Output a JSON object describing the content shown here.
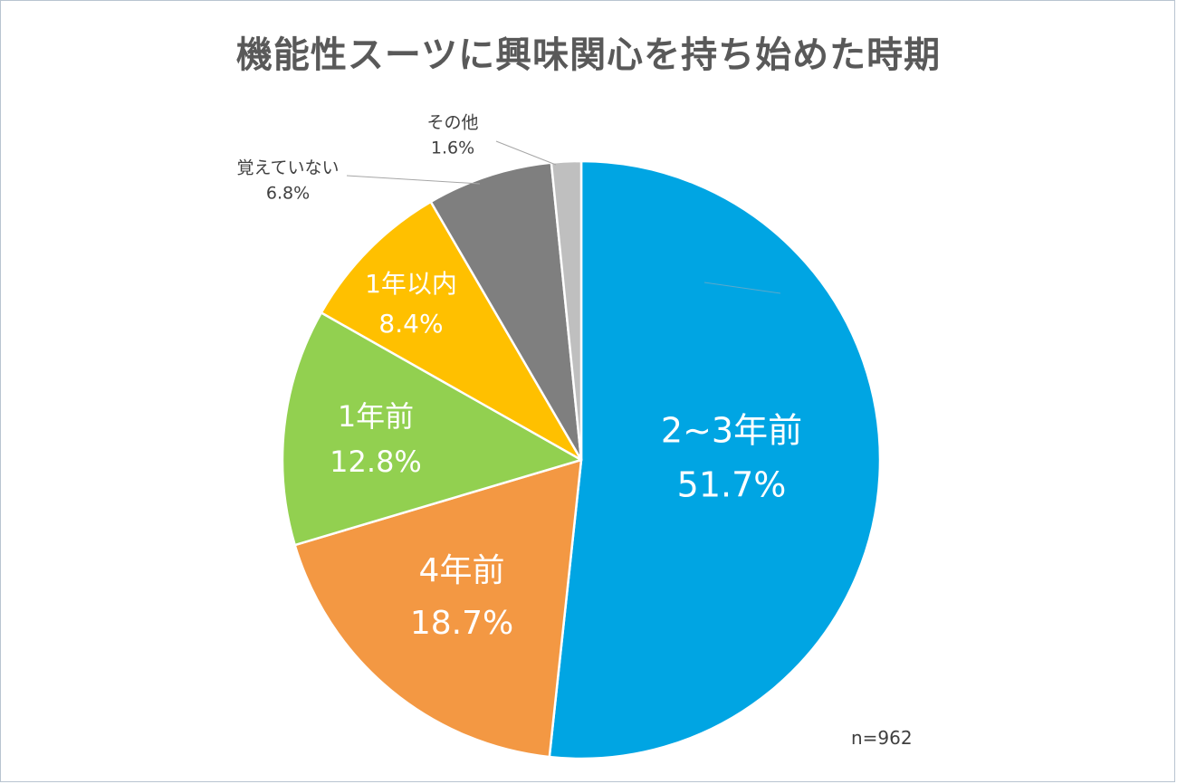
{
  "chart_data": {
    "type": "pie",
    "title": "機能性スーツに興味関心を持ち始めた時期",
    "note": "n=962",
    "slices": [
      {
        "label": "2~3年前",
        "value": 51.7,
        "value_label": "51.7%",
        "color": "#00a5e3"
      },
      {
        "label": "4年前",
        "value": 18.7,
        "value_label": "18.7%",
        "color": "#f39843"
      },
      {
        "label": "1年前",
        "value": 12.8,
        "value_label": "12.8%",
        "color": "#92d050"
      },
      {
        "label": "1年以内",
        "value": 8.4,
        "value_label": "8.4%",
        "color": "#ffc000"
      },
      {
        "label": "覚えていない",
        "value": 6.8,
        "value_label": "6.8%",
        "color": "#7f7f7f"
      },
      {
        "label": "その他",
        "value": 1.6,
        "value_label": "1.6%",
        "color": "#bfbfbf"
      }
    ]
  }
}
